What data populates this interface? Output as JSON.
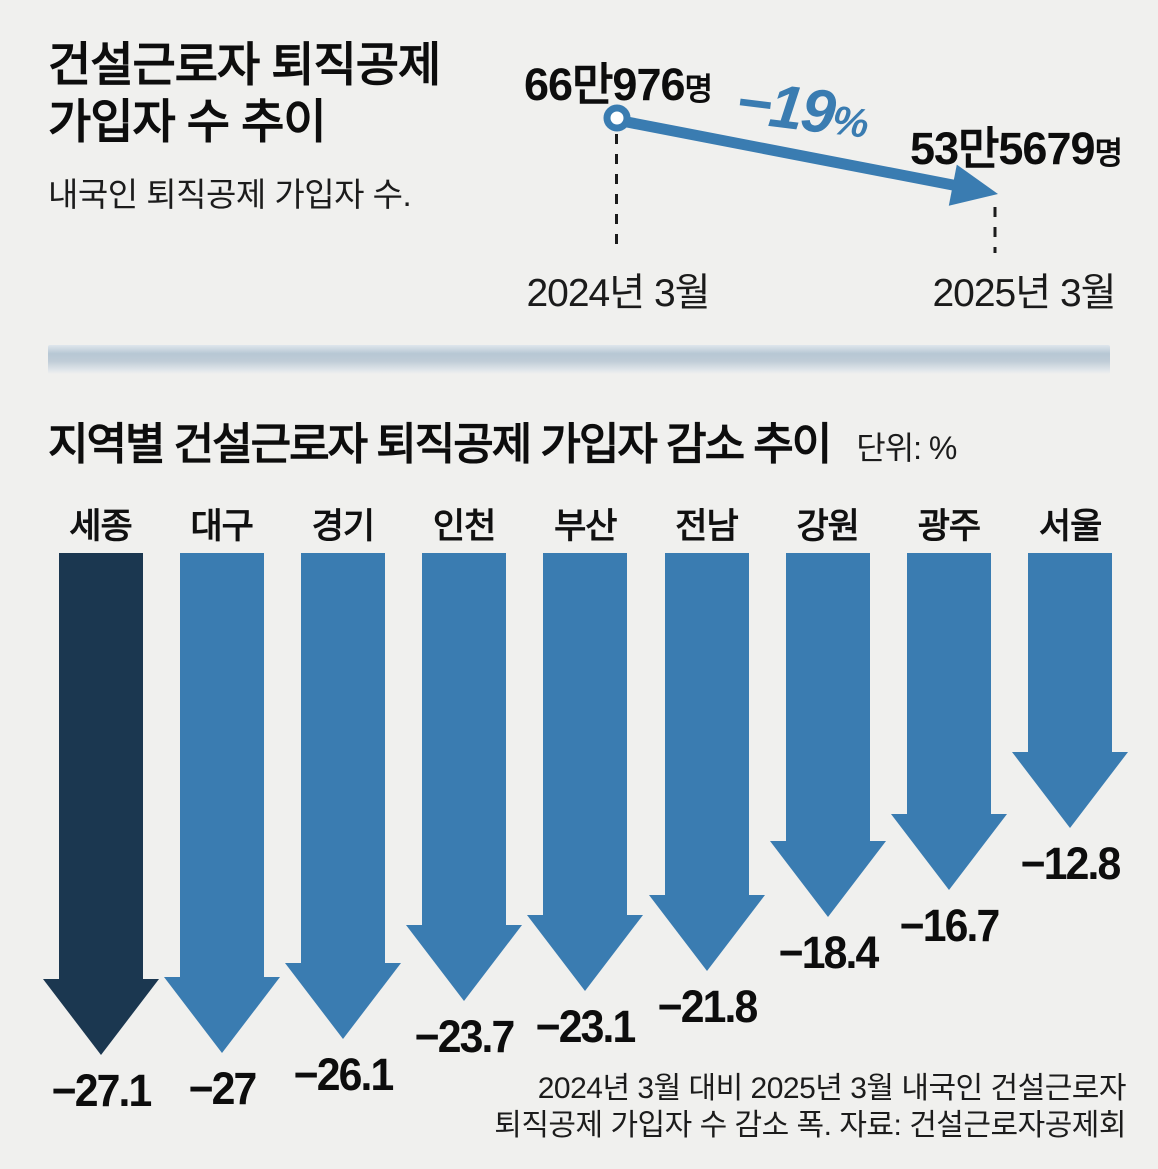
{
  "header": {
    "title_line1": "건설근로자 퇴직공제",
    "title_line2": "가입자 수 추이",
    "subtitle": "내국인 퇴직공제 가입자 수."
  },
  "trend": {
    "start_num": "66만976",
    "start_unit": "명",
    "end_num": "53만5679",
    "end_unit": "명",
    "change_num": "−19",
    "change_unit": "%",
    "start_date": "2024년 3월",
    "end_date": "2025년 3월",
    "accent_color": "#3a7cb1"
  },
  "section": {
    "title": "지역별 건설근로자 퇴직공제 가입자 감소 추이",
    "unit_label": "단위: %"
  },
  "chart_data": [
    {
      "type": "line",
      "title": "건설근로자 퇴직공제 가입자 수 추이",
      "subtitle": "내국인 퇴직공제 가입자 수.",
      "x": [
        "2024년 3월",
        "2025년 3월"
      ],
      "values": [
        660976,
        535679
      ],
      "point_labels": [
        "66만976명",
        "53만5679명"
      ],
      "annotation": "−19%",
      "accent_color": "#3a7cb1"
    },
    {
      "type": "bar",
      "title": "지역별 건설근로자 퇴직공제 가입자 감소 추이",
      "unit": "%",
      "categories": [
        "세종",
        "대구",
        "경기",
        "인천",
        "부산",
        "전남",
        "강원",
        "광주",
        "서울"
      ],
      "values": [
        -27.1,
        -27,
        -26.1,
        -23.7,
        -23.1,
        -21.8,
        -18.4,
        -16.7,
        -12.8
      ],
      "ylim": [
        -28,
        0
      ],
      "bar_color": "#3a7cb1",
      "highlight_category": "세종",
      "highlight_color": "#1b3750",
      "legend": "none",
      "grid": false
    }
  ],
  "footer": {
    "line1": "2024년 3월 대비 2025년 3월 내국인 건설근로자",
    "line2": "퇴직공제 가입자 수 감소 폭. 자료: 건설근로자공제회"
  }
}
